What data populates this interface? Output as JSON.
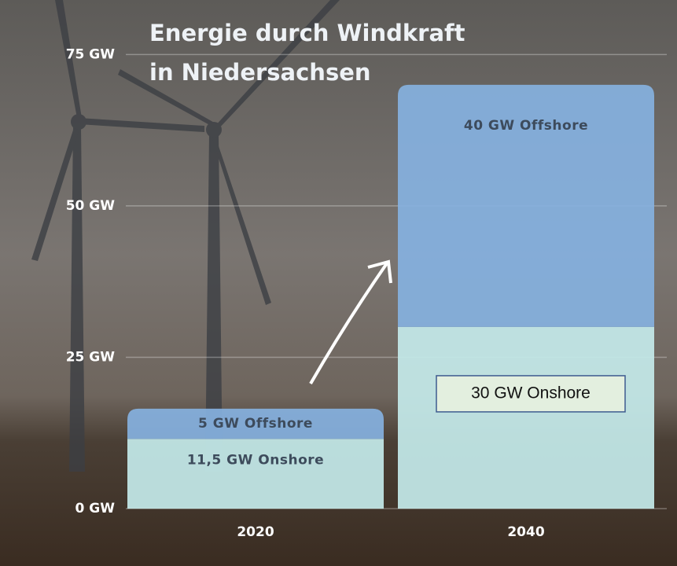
{
  "chart_data": {
    "type": "stacked_bar",
    "title": [
      "Energie durch Windkraft",
      "in Niedersachsen"
    ],
    "categories": [
      "2020",
      "2040"
    ],
    "series": [
      {
        "color": "#c4eaea",
        "values": [
          11.5,
          30
        ],
        "value_labels": [
          "11,5 GW Onshore",
          "30 GW Onshore"
        ]
      },
      {
        "color": "#86b1e0",
        "values": [
          5,
          40
        ],
        "value_labels": [
          "5 GW Offshore",
          "40 GW Offshore"
        ]
      }
    ],
    "ylim": [
      0,
      84
    ],
    "yticks": [
      {
        "value": 0,
        "label": "0 GW"
      },
      {
        "value": 25,
        "label": "25 GW"
      },
      {
        "value": 50,
        "label": "50 GW"
      },
      {
        "value": 75,
        "label": "75 GW"
      }
    ],
    "grid": true
  }
}
